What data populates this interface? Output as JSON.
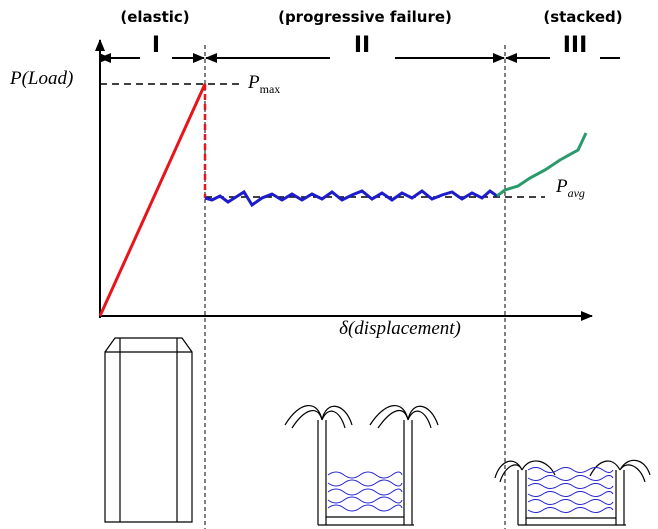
{
  "header": {
    "stages": [
      {
        "name": "(elastic)",
        "numeral": "I"
      },
      {
        "name": "(progressive failure)",
        "numeral": "II"
      },
      {
        "name": "(stacked)",
        "numeral": "III"
      }
    ]
  },
  "axes": {
    "y_label": "P(Load)",
    "x_label": "δ(displacement)"
  },
  "annotations": {
    "p_max": {
      "symbol": "P",
      "subscript": "max"
    },
    "p_avg": {
      "symbol": "P",
      "subscript": "avg"
    }
  }
}
